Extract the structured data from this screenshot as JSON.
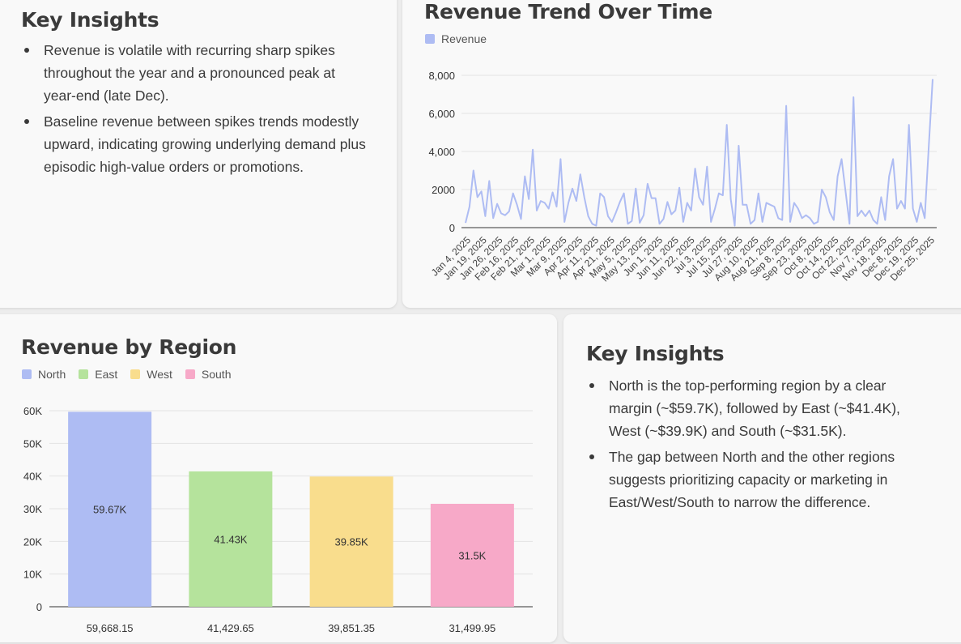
{
  "insights_top": {
    "title": "Key Insights",
    "bullets": [
      "Revenue is volatile with recurring sharp spikes throughout the year and a pronounced peak at year-end (late Dec).",
      "Baseline revenue between spikes trends modestly upward, indicating growing underlying demand plus episodic high-value orders or promotions."
    ]
  },
  "insights_bottom": {
    "title": "Key Insights",
    "bullets": [
      "North is the top-performing region by a clear margin (~$59.7K), followed by East (~$41.4K), West (~$39.9K) and South (~$31.5K).",
      "The gap between North and the other regions suggests prioritizing capacity or marketing in East/West/South to narrow the difference."
    ]
  },
  "chart_data": [
    {
      "type": "line",
      "title": "Revenue Trend Over Time",
      "legend_position": "top-left",
      "grid": true,
      "ylim": [
        0,
        8000
      ],
      "y_ticks": [
        "0",
        "2000",
        "4,000",
        "6,000",
        "8,000"
      ],
      "x_tick_labels": [
        "Jan 4, 2025",
        "Jan 19, 2025",
        "Jan 26, 2025",
        "Feb 16, 2025",
        "Feb 21, 2025",
        "Mar 1, 2025",
        "Mar 9, 2025",
        "Apr 2, 2025",
        "Apr 11, 2025",
        "Apr 21, 2025",
        "May 5, 2025",
        "May 13, 2025",
        "Jun 1, 2025",
        "Jun 11, 2025",
        "Jun 22, 2025",
        "Jul 3, 2025",
        "Jul 15, 2025",
        "Jul 27, 2025",
        "Aug 10, 2025",
        "Aug 21, 2025",
        "Sep 8, 2025",
        "Sep 23, 2025",
        "Oct 8, 2025",
        "Oct 14, 2025",
        "Oct 22, 2025",
        "Nov 7, 2025",
        "Nov 18, 2025",
        "Dec 8, 2025",
        "Dec 19, 2025",
        "Dec 25, 2025"
      ],
      "series": [
        {
          "name": "Revenue",
          "color": "#aebcf3",
          "values": [
            250,
            1100,
            3000,
            1600,
            1900,
            600,
            2450,
            500,
            1250,
            750,
            650,
            850,
            1800,
            1200,
            450,
            2700,
            1500,
            4100,
            900,
            1400,
            1300,
            1000,
            1850,
            1100,
            3600,
            300,
            1300,
            2050,
            1400,
            2800,
            1600,
            600,
            200,
            100,
            1800,
            1600,
            600,
            300,
            800,
            1350,
            1800,
            200,
            350,
            2050,
            250,
            650,
            2300,
            1550,
            1550,
            200,
            450,
            1350,
            700,
            900,
            2100,
            300,
            1300,
            900,
            3100,
            1600,
            1200,
            3200,
            300,
            1000,
            1800,
            1700,
            5400,
            1500,
            100,
            4300,
            1200,
            1200,
            200,
            400,
            1800,
            300,
            1300,
            1200,
            1100,
            500,
            400,
            6400,
            300,
            1300,
            1000,
            500,
            650,
            500,
            200,
            300,
            2000,
            1600,
            800,
            400,
            2700,
            3600,
            1900,
            200,
            6850,
            600,
            900,
            600,
            900,
            400,
            200,
            1600,
            400,
            2700,
            3600,
            1000,
            1400,
            1000,
            5400,
            1000,
            300,
            1300,
            500,
            4200,
            7800
          ]
        }
      ]
    },
    {
      "type": "bar",
      "title": "Revenue by Region",
      "legend_position": "top-left",
      "grid": true,
      "ylim": [
        0,
        60000
      ],
      "y_ticks": [
        "0",
        "10K",
        "20K",
        "30K",
        "40K",
        "50K",
        "60K"
      ],
      "categories": [
        "North",
        "East",
        "West",
        "South"
      ],
      "values": [
        59668.15,
        41429.65,
        39851.35,
        31499.95
      ],
      "bar_labels": [
        "59.67K",
        "41.43K",
        "39.85K",
        "31.5K"
      ],
      "category_labels": [
        "59,668.15",
        "41,429.65",
        "39,851.35",
        "31,499.95"
      ],
      "colors": [
        "#aebcf3",
        "#b5e39c",
        "#f9dd8d",
        "#f7a9c8"
      ]
    }
  ]
}
